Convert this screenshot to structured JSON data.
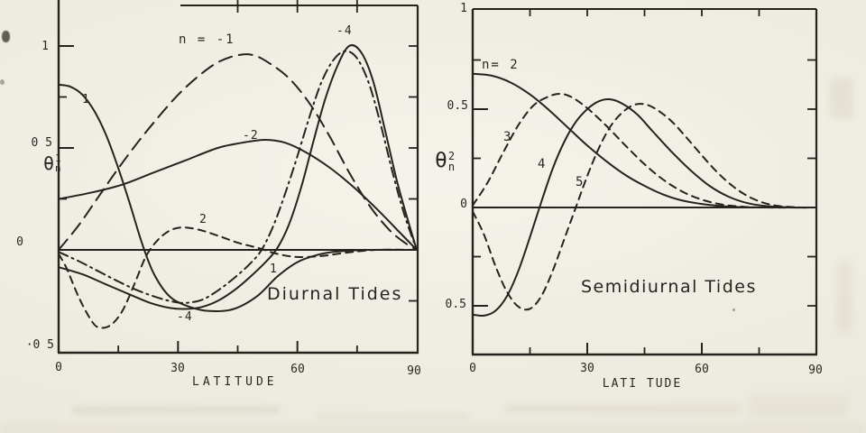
{
  "figure": {
    "background": "#efece1",
    "ink": "#25231d",
    "kind": "scanned line-plot figure, two panels"
  },
  "chart_data": [
    {
      "type": "line",
      "title": "Diurnal Tides",
      "xlabel": "LATITUDE",
      "ylabel": {
        "base": "θ",
        "sup": "1",
        "sub": "n"
      },
      "xlim": [
        0,
        90
      ],
      "ylim": [
        -0.504,
        1.199
      ],
      "grid": false,
      "legend": "labels drawn beside curves",
      "x_ticks": {
        "major": [
          0,
          30,
          60,
          90
        ],
        "minor": [
          15,
          45,
          75
        ],
        "top": [
          45,
          60,
          75
        ],
        "labels": [
          "0",
          "30",
          "60",
          "90"
        ]
      },
      "y_ticks": {
        "major": [
          1,
          0.5
        ],
        "minor": [
          0.75,
          0.25
        ],
        "right": [
          1,
          0.75,
          0.5,
          0.25,
          -0.25
        ],
        "labels": [
          "1",
          "0 5",
          "0",
          "·0 5"
        ]
      },
      "zero_line": true,
      "series": [
        {
          "name": "1",
          "style": "solid",
          "points": [
            [
              0,
              0.81
            ],
            [
              3,
              0.8
            ],
            [
              6,
              0.76
            ],
            [
              9,
              0.68
            ],
            [
              12,
              0.56
            ],
            [
              15,
              0.4
            ],
            [
              18,
              0.22
            ],
            [
              21,
              0.03
            ],
            [
              24,
              -0.12
            ],
            [
              28,
              -0.23
            ],
            [
              33,
              -0.28
            ],
            [
              38,
              -0.3
            ],
            [
              44,
              -0.29
            ],
            [
              50,
              -0.225
            ],
            [
              55,
              -0.13
            ],
            [
              60,
              -0.06
            ],
            [
              65,
              -0.025
            ],
            [
              70,
              -0.008
            ],
            [
              78,
              0
            ],
            [
              90,
              0
            ]
          ]
        },
        {
          "name": "-1",
          "style": "long-dash",
          "points": [
            [
              0,
              0
            ],
            [
              5,
              0.12
            ],
            [
              10,
              0.26
            ],
            [
              15,
              0.4
            ],
            [
              20,
              0.53
            ],
            [
              25,
              0.65
            ],
            [
              30,
              0.76
            ],
            [
              35,
              0.85
            ],
            [
              40,
              0.92
            ],
            [
              45,
              0.955
            ],
            [
              49,
              0.955
            ],
            [
              53,
              0.915
            ],
            [
              58,
              0.84
            ],
            [
              63,
              0.72
            ],
            [
              68,
              0.56
            ],
            [
              73,
              0.38
            ],
            [
              78,
              0.22
            ],
            [
              83,
              0.1
            ],
            [
              87,
              0.035
            ],
            [
              90,
              0
            ]
          ]
        },
        {
          "name": "-2",
          "style": "solid",
          "points": [
            [
              0,
              0.25
            ],
            [
              8,
              0.28
            ],
            [
              16,
              0.32
            ],
            [
              24,
              0.38
            ],
            [
              32,
              0.44
            ],
            [
              40,
              0.5
            ],
            [
              46,
              0.525
            ],
            [
              52,
              0.54
            ],
            [
              57,
              0.525
            ],
            [
              62,
              0.48
            ],
            [
              68,
              0.405
            ],
            [
              74,
              0.31
            ],
            [
              80,
              0.2
            ],
            [
              85,
              0.1
            ],
            [
              90,
              0
            ]
          ]
        },
        {
          "name": "2",
          "style": "short-dash",
          "points": [
            [
              0,
              -0.02
            ],
            [
              2,
              -0.09
            ],
            [
              5,
              -0.23
            ],
            [
              8,
              -0.34
            ],
            [
              10,
              -0.38
            ],
            [
              13,
              -0.37
            ],
            [
              16,
              -0.3
            ],
            [
              19,
              -0.17
            ],
            [
              22,
              -0.03
            ],
            [
              25,
              0.05
            ],
            [
              28,
              0.095
            ],
            [
              31,
              0.11
            ],
            [
              35,
              0.1
            ],
            [
              40,
              0.07
            ],
            [
              45,
              0.035
            ],
            [
              50,
              0.01
            ],
            [
              55,
              -0.02
            ],
            [
              60,
              -0.035
            ],
            [
              66,
              -0.03
            ],
            [
              73,
              -0.012
            ],
            [
              80,
              0
            ],
            [
              90,
              0
            ]
          ]
        },
        {
          "name": "-4",
          "style": "solid",
          "points": [
            [
              0,
              -0.085
            ],
            [
              6,
              -0.12
            ],
            [
              12,
              -0.17
            ],
            [
              18,
              -0.22
            ],
            [
              23,
              -0.26
            ],
            [
              28,
              -0.285
            ],
            [
              32,
              -0.29
            ],
            [
              36,
              -0.28
            ],
            [
              40,
              -0.25
            ],
            [
              44,
              -0.2
            ],
            [
              48,
              -0.135
            ],
            [
              52,
              -0.06
            ],
            [
              55,
              0.01
            ],
            [
              58,
              0.13
            ],
            [
              61,
              0.31
            ],
            [
              64,
              0.53
            ],
            [
              67,
              0.74
            ],
            [
              70,
              0.9
            ],
            [
              73,
              1.0
            ],
            [
              76,
              0.97
            ],
            [
              79,
              0.83
            ],
            [
              82,
              0.59
            ],
            [
              85,
              0.34
            ],
            [
              88,
              0.13
            ],
            [
              90,
              0
            ]
          ]
        },
        {
          "name": "-4 (dashed variant)",
          "style": "dash-dot",
          "points": [
            [
              0,
              -0.01
            ],
            [
              5,
              -0.055
            ],
            [
              10,
              -0.105
            ],
            [
              15,
              -0.155
            ],
            [
              20,
              -0.2
            ],
            [
              25,
              -0.235
            ],
            [
              29,
              -0.255
            ],
            [
              32,
              -0.26
            ],
            [
              36,
              -0.245
            ],
            [
              40,
              -0.2
            ],
            [
              44,
              -0.14
            ],
            [
              48,
              -0.07
            ],
            [
              51,
              0
            ],
            [
              54,
              0.12
            ],
            [
              57,
              0.28
            ],
            [
              60,
              0.46
            ],
            [
              63,
              0.65
            ],
            [
              66,
              0.82
            ],
            [
              69,
              0.93
            ],
            [
              72,
              0.975
            ],
            [
              75,
              0.94
            ],
            [
              78,
              0.815
            ],
            [
              81,
              0.61
            ],
            [
              84,
              0.375
            ],
            [
              87,
              0.165
            ],
            [
              90,
              0
            ]
          ]
        }
      ],
      "curve_labels": [
        "n = -1",
        "-4",
        "-2",
        "2",
        "1",
        "1",
        "-4"
      ]
    },
    {
      "type": "line",
      "title": "Semidiurnal Tides",
      "xlabel": "LATI TUDE",
      "ylabel": {
        "base": "θ",
        "sup": "2",
        "sub": "n"
      },
      "xlim": [
        0,
        90
      ],
      "ylim": [
        -0.748,
        1.009
      ],
      "grid": false,
      "legend": "labels drawn beside curves",
      "x_ticks": {
        "major": [
          0,
          30,
          60,
          90
        ],
        "minor": [
          15,
          45,
          75
        ],
        "top": [
          15,
          30,
          45,
          60,
          75
        ],
        "labels": [
          "0",
          "30",
          "60",
          "90"
        ]
      },
      "y_ticks": {
        "major": [
          0.5,
          -0.5
        ],
        "minor": [
          0.75,
          0.25,
          -0.25
        ],
        "right": [
          0.75,
          0.5,
          0.25,
          -0.25,
          -0.5
        ],
        "labels": [
          "1",
          "0.5",
          "0",
          "0.5"
        ]
      },
      "zero_line": true,
      "series": [
        {
          "name": "2",
          "style": "solid",
          "points": [
            [
              0,
              0.68
            ],
            [
              5,
              0.67
            ],
            [
              10,
              0.635
            ],
            [
              15,
              0.575
            ],
            [
              20,
              0.495
            ],
            [
              25,
              0.405
            ],
            [
              30,
              0.315
            ],
            [
              35,
              0.235
            ],
            [
              40,
              0.165
            ],
            [
              45,
              0.11
            ],
            [
              50,
              0.065
            ],
            [
              55,
              0.035
            ],
            [
              60,
              0.018
            ],
            [
              66,
              0.006
            ],
            [
              72,
              0.001
            ],
            [
              80,
              0
            ],
            [
              90,
              0
            ]
          ]
        },
        {
          "name": "3",
          "style": "short-dash",
          "points": [
            [
              0,
              0.01
            ],
            [
              4,
              0.13
            ],
            [
              8,
              0.28
            ],
            [
              12,
              0.42
            ],
            [
              16,
              0.52
            ],
            [
              20,
              0.565
            ],
            [
              23,
              0.578
            ],
            [
              26,
              0.56
            ],
            [
              30,
              0.505
            ],
            [
              35,
              0.415
            ],
            [
              40,
              0.315
            ],
            [
              45,
              0.22
            ],
            [
              50,
              0.14
            ],
            [
              55,
              0.08
            ],
            [
              60,
              0.04
            ],
            [
              65,
              0.016
            ],
            [
              70,
              0.005
            ],
            [
              76,
              0
            ],
            [
              90,
              0
            ]
          ]
        },
        {
          "name": "4",
          "style": "solid",
          "points": [
            [
              0,
              -0.545
            ],
            [
              3,
              -0.55
            ],
            [
              6,
              -0.525
            ],
            [
              9,
              -0.45
            ],
            [
              12,
              -0.32
            ],
            [
              15,
              -0.15
            ],
            [
              18,
              0.03
            ],
            [
              21,
              0.2
            ],
            [
              24,
              0.335
            ],
            [
              27,
              0.435
            ],
            [
              30,
              0.5
            ],
            [
              33,
              0.54
            ],
            [
              36,
              0.55
            ],
            [
              39,
              0.53
            ],
            [
              43,
              0.475
            ],
            [
              47,
              0.39
            ],
            [
              52,
              0.285
            ],
            [
              57,
              0.19
            ],
            [
              62,
              0.11
            ],
            [
              67,
              0.055
            ],
            [
              72,
              0.022
            ],
            [
              77,
              0.007
            ],
            [
              84,
              0
            ],
            [
              90,
              0
            ]
          ]
        },
        {
          "name": "5",
          "style": "short-dash",
          "points": [
            [
              0,
              -0.02
            ],
            [
              3,
              -0.14
            ],
            [
              6,
              -0.3
            ],
            [
              9,
              -0.43
            ],
            [
              12,
              -0.505
            ],
            [
              15,
              -0.515
            ],
            [
              18,
              -0.45
            ],
            [
              21,
              -0.32
            ],
            [
              24,
              -0.16
            ],
            [
              27,
              0
            ],
            [
              30,
              0.16
            ],
            [
              33,
              0.3
            ],
            [
              36,
              0.41
            ],
            [
              39,
              0.48
            ],
            [
              42,
              0.52
            ],
            [
              45,
              0.525
            ],
            [
              48,
              0.5
            ],
            [
              52,
              0.44
            ],
            [
              56,
              0.355
            ],
            [
              60,
              0.265
            ],
            [
              64,
              0.18
            ],
            [
              68,
              0.11
            ],
            [
              72,
              0.058
            ],
            [
              76,
              0.025
            ],
            [
              80,
              0.008
            ],
            [
              86,
              0
            ],
            [
              90,
              0
            ]
          ]
        }
      ],
      "curve_labels": [
        "n= 2",
        "3",
        "4",
        "5"
      ]
    }
  ]
}
